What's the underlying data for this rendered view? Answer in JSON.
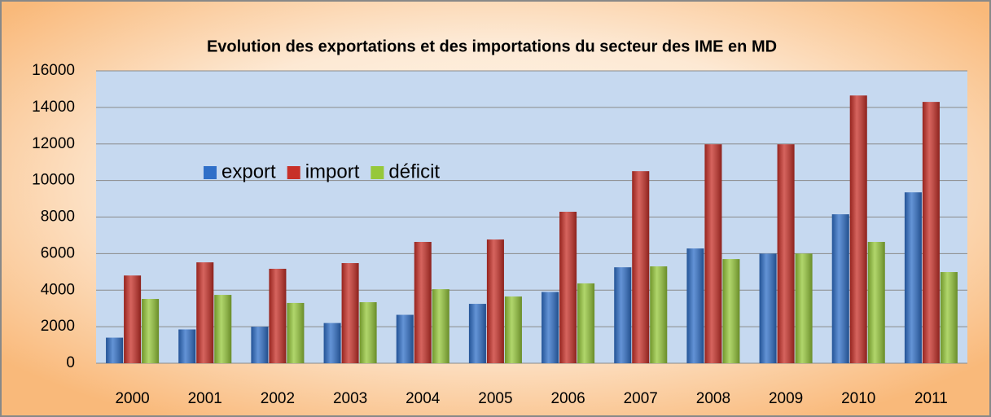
{
  "chart_data": {
    "type": "bar",
    "title": "Evolution des exportations et des importations du secteur des IME en MD",
    "categories": [
      "2000",
      "2001",
      "2002",
      "2003",
      "2004",
      "2005",
      "2006",
      "2007",
      "2008",
      "2009",
      "2010",
      "2011"
    ],
    "series": [
      {
        "name": "export",
        "color": "#2f6fc8",
        "values": [
          1400,
          1850,
          2000,
          2200,
          2650,
          3250,
          3900,
          5250,
          6280,
          6000,
          8150,
          9350
        ]
      },
      {
        "name": "import",
        "color": "#c83028",
        "values": [
          4800,
          5520,
          5170,
          5480,
          6640,
          6770,
          8290,
          10510,
          11980,
          11980,
          14650,
          14300
        ]
      },
      {
        "name": "déficit",
        "color": "#96c83a",
        "values": [
          3520,
          3740,
          3300,
          3340,
          4050,
          3650,
          4370,
          5300,
          5700,
          6000,
          6640,
          4990
        ]
      }
    ],
    "ylim": [
      0,
      16000
    ],
    "yticks": [
      0,
      2000,
      4000,
      6000,
      8000,
      10000,
      12000,
      14000,
      16000
    ],
    "grid": true
  }
}
